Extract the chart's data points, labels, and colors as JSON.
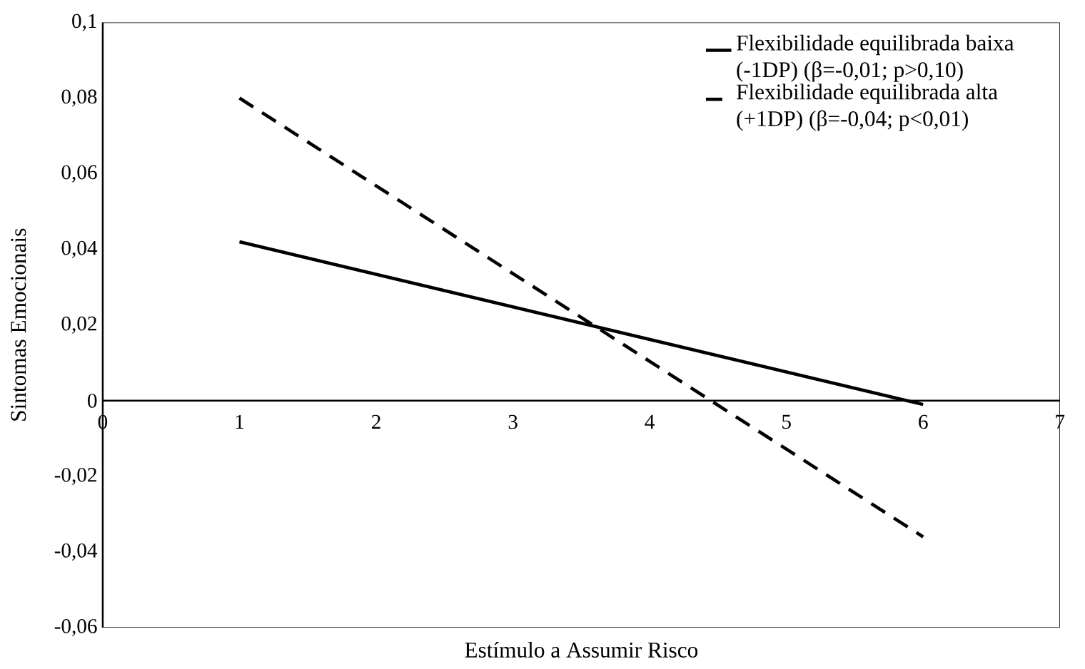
{
  "chart_data": {
    "type": "line",
    "xlabel": "Estímulo a Assumir Risco",
    "ylabel": "Sintomas Emocionais",
    "x": [
      1,
      6
    ],
    "series": [
      {
        "name": "Flexibilidade equilibrada baixa (-1DP) (β=-0,01; p>0,10)",
        "color": "#000000",
        "line_style": "solid",
        "values": [
          0.042,
          -0.001
        ]
      },
      {
        "name": "Flexibilidade equilibrada alta (+1DP) (β=-0,04; p<0,01)",
        "color": "#000000",
        "line_style": "dashed",
        "values": [
          0.08,
          -0.036
        ]
      }
    ],
    "xlim": [
      0,
      7
    ],
    "xticks": [
      0,
      1,
      2,
      3,
      4,
      5,
      6,
      7
    ],
    "ylim": [
      -0.06,
      0.1
    ],
    "yticks": [
      {
        "value": -0.06,
        "label": "-0,06"
      },
      {
        "value": -0.04,
        "label": "-0,04"
      },
      {
        "value": -0.02,
        "label": "-0,02"
      },
      {
        "value": 0,
        "label": "0"
      },
      {
        "value": 0.02,
        "label": "0,02"
      },
      {
        "value": 0.04,
        "label": "0,04"
      },
      {
        "value": 0.06,
        "label": "0,06"
      },
      {
        "value": 0.08,
        "label": "0,08"
      },
      {
        "value": 0.1,
        "label": "0,1"
      }
    ],
    "legend": "top right",
    "marker": "none",
    "grid": false
  }
}
